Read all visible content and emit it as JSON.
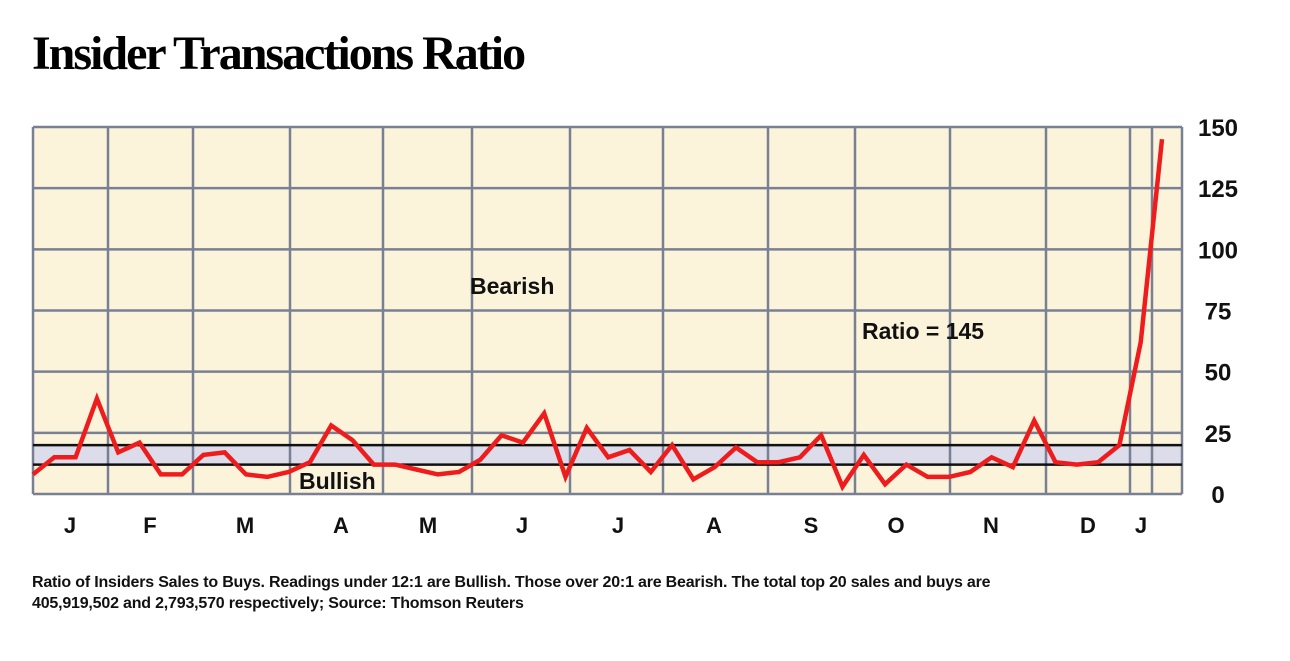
{
  "chart_data": {
    "type": "line",
    "title": "Insider Transactions Ratio",
    "xlabel": "",
    "ylabel": "",
    "ylim": [
      0,
      150
    ],
    "yticks": [
      0,
      25,
      50,
      75,
      100,
      125,
      150
    ],
    "ytick_labels": [
      "0",
      "25",
      "50",
      "75",
      "100",
      "125",
      "150"
    ],
    "month_labels": [
      "J",
      "F",
      "M",
      "A",
      "M",
      "J",
      "J",
      "A",
      "S",
      "O",
      "N",
      "D",
      "J"
    ],
    "bullish_threshold": 12,
    "bearish_threshold": 20,
    "band_labels": {
      "bearish": "Bearish",
      "bullish": "Bullish"
    },
    "annotation": "Ratio = 145",
    "series": [
      {
        "name": "Ratio of Insiders Sales to Buys",
        "color": "#ee1c1c",
        "values": [
          8,
          15,
          15,
          39,
          17,
          21,
          8,
          8,
          16,
          17,
          8,
          7,
          9,
          13,
          28,
          22,
          12,
          12,
          10,
          8,
          9,
          14,
          24,
          21,
          33,
          7,
          27,
          15,
          18,
          9,
          20,
          6,
          11,
          19,
          13,
          13,
          15,
          24,
          3,
          16,
          4,
          12,
          7,
          7,
          9,
          15,
          11,
          30,
          13,
          12,
          13,
          20,
          62,
          145
        ]
      }
    ]
  },
  "colors": {
    "background": "#fbf4db",
    "band": "#dcdcea",
    "grid": "#7a8094",
    "line": "#ee1c1c"
  },
  "note": {
    "line1": "Ratio of Insiders Sales to Buys. Readings under 12:1 are Bullish. Those over 20:1 are Bearish. The total top 20 sales and buys are",
    "line2": "405,919,502 and 2,793,570 respectively; Source: Thomson Reuters"
  }
}
